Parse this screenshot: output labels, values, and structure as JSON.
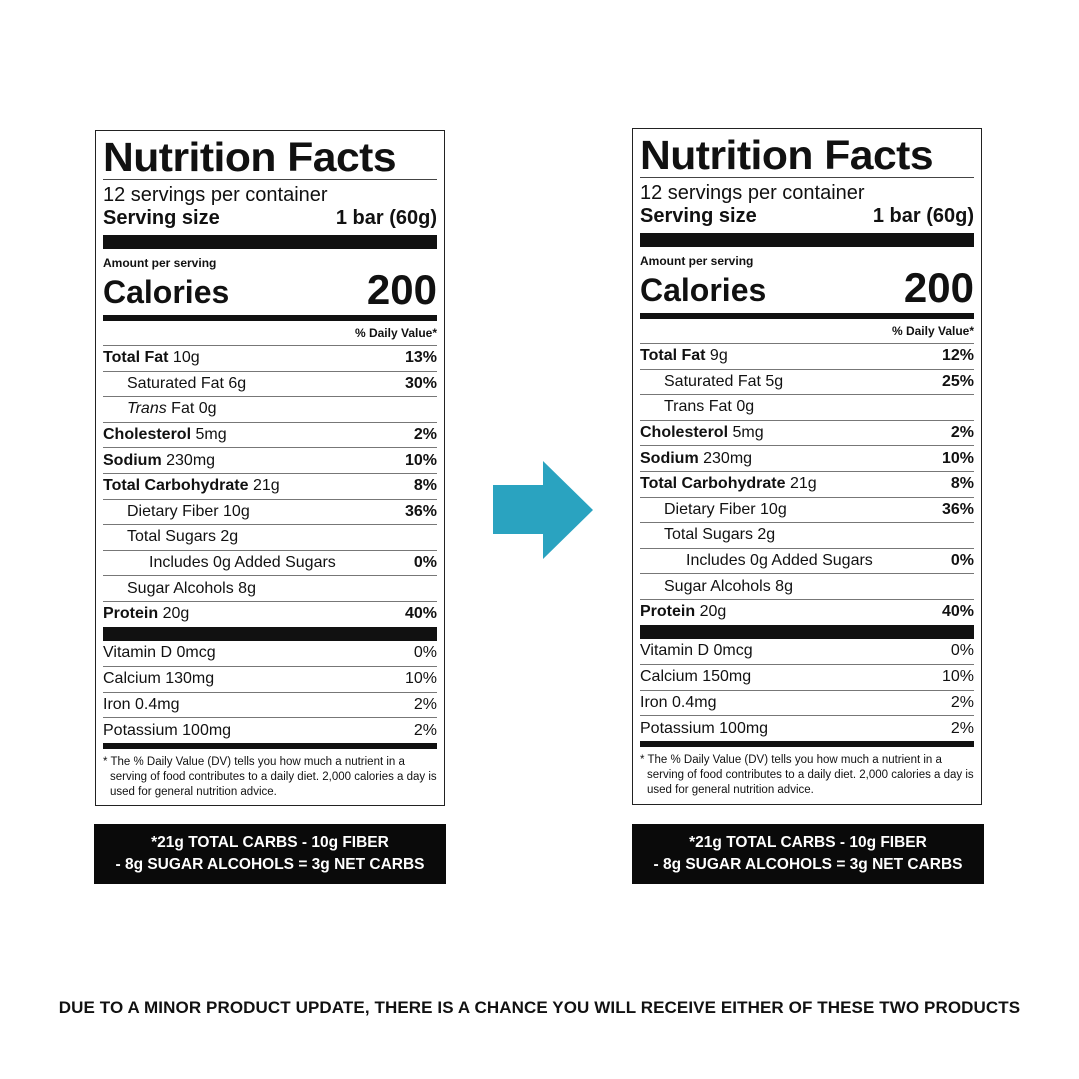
{
  "labels": [
    {
      "title": "Nutrition Facts",
      "servings": "12 servings per container",
      "serving_size_label": "Serving size",
      "serving_size_value": "1 bar (60g)",
      "amount_per_serving": "Amount per serving",
      "calories_label": "Calories",
      "calories_value": "200",
      "dv_header": "% Daily Value*",
      "rows": [
        {
          "name": "Total Fat",
          "amount": " 10g",
          "pct": "13%"
        },
        {
          "name": "Saturated Fat 6g",
          "amount": "",
          "pct": "30%"
        },
        {
          "name": "Trans",
          "amount": " Fat 0g",
          "pct": ""
        },
        {
          "name": "Cholesterol",
          "amount": " 5mg",
          "pct": "2%"
        },
        {
          "name": "Sodium",
          "amount": " 230mg",
          "pct": "10%"
        },
        {
          "name": "Total Carbohydrate",
          "amount": " 21g",
          "pct": "8%"
        },
        {
          "name": "Dietary Fiber 10g",
          "amount": "",
          "pct": "36%"
        },
        {
          "name": "Total Sugars 2g",
          "amount": "",
          "pct": ""
        },
        {
          "name": "Includes 0g Added Sugars",
          "amount": "",
          "pct": "0%"
        },
        {
          "name": "Sugar Alcohols 8g",
          "amount": "",
          "pct": ""
        },
        {
          "name": "Protein",
          "amount": " 20g",
          "pct": "40%"
        }
      ],
      "vitamins": [
        {
          "name": "Vitamin D 0mcg",
          "pct": "0%"
        },
        {
          "name": "Calcium 130mg",
          "pct": "10%"
        },
        {
          "name": "Iron 0.4mg",
          "pct": "2%"
        },
        {
          "name": "Potassium 100mg",
          "pct": "2%"
        }
      ],
      "footnote": "* The % Daily Value (DV) tells you how much a nutrient in a serving of food contributes to a daily diet. 2,000 calories a day is used for general nutrition advice.",
      "net_carbs_line1": "*21g TOTAL CARBS - 10g FIBER",
      "net_carbs_line2": "- 8g SUGAR ALCOHOLS = 3g NET CARBS"
    },
    {
      "title": "Nutrition Facts",
      "servings": "12 servings per container",
      "serving_size_label": "Serving size",
      "serving_size_value": "1 bar (60g)",
      "amount_per_serving": "Amount per serving",
      "calories_label": "Calories",
      "calories_value": "200",
      "dv_header": "% Daily Value*",
      "rows": [
        {
          "name": "Total Fat",
          "amount": " 9g",
          "pct": "12%"
        },
        {
          "name": "Saturated Fat 5g",
          "amount": "",
          "pct": "25%"
        },
        {
          "name": "Trans",
          "amount": " Fat 0g",
          "pct": ""
        },
        {
          "name": "Cholesterol",
          "amount": " 5mg",
          "pct": "2%"
        },
        {
          "name": "Sodium",
          "amount": " 230mg",
          "pct": "10%"
        },
        {
          "name": "Total Carbohydrate",
          "amount": " 21g",
          "pct": "8%"
        },
        {
          "name": "Dietary Fiber 10g",
          "amount": "",
          "pct": "36%"
        },
        {
          "name": "Total Sugars 2g",
          "amount": "",
          "pct": ""
        },
        {
          "name": "Includes 0g Added Sugars",
          "amount": "",
          "pct": "0%"
        },
        {
          "name": "Sugar Alcohols 8g",
          "amount": "",
          "pct": ""
        },
        {
          "name": "Protein",
          "amount": " 20g",
          "pct": "40%"
        }
      ],
      "vitamins": [
        {
          "name": "Vitamin D 0mcg",
          "pct": "0%"
        },
        {
          "name": "Calcium 150mg",
          "pct": "10%"
        },
        {
          "name": "Iron 0.4mg",
          "pct": "2%"
        },
        {
          "name": "Potassium 100mg",
          "pct": "2%"
        }
      ],
      "footnote": "* The % Daily Value (DV) tells you how much a nutrient in a serving of food contributes to a daily diet. 2,000 calories a day is used for general nutrition advice.",
      "net_carbs_line1": "*21g TOTAL CARBS - 10g FIBER",
      "net_carbs_line2": "- 8g SUGAR ALCOHOLS = 3g NET CARBS"
    }
  ],
  "arrow_color": "#2aa3c0",
  "notice": "DUE TO A MINOR PRODUCT UPDATE, THERE IS A CHANCE YOU WILL RECEIVE EITHER OF THESE TWO PRODUCTS"
}
